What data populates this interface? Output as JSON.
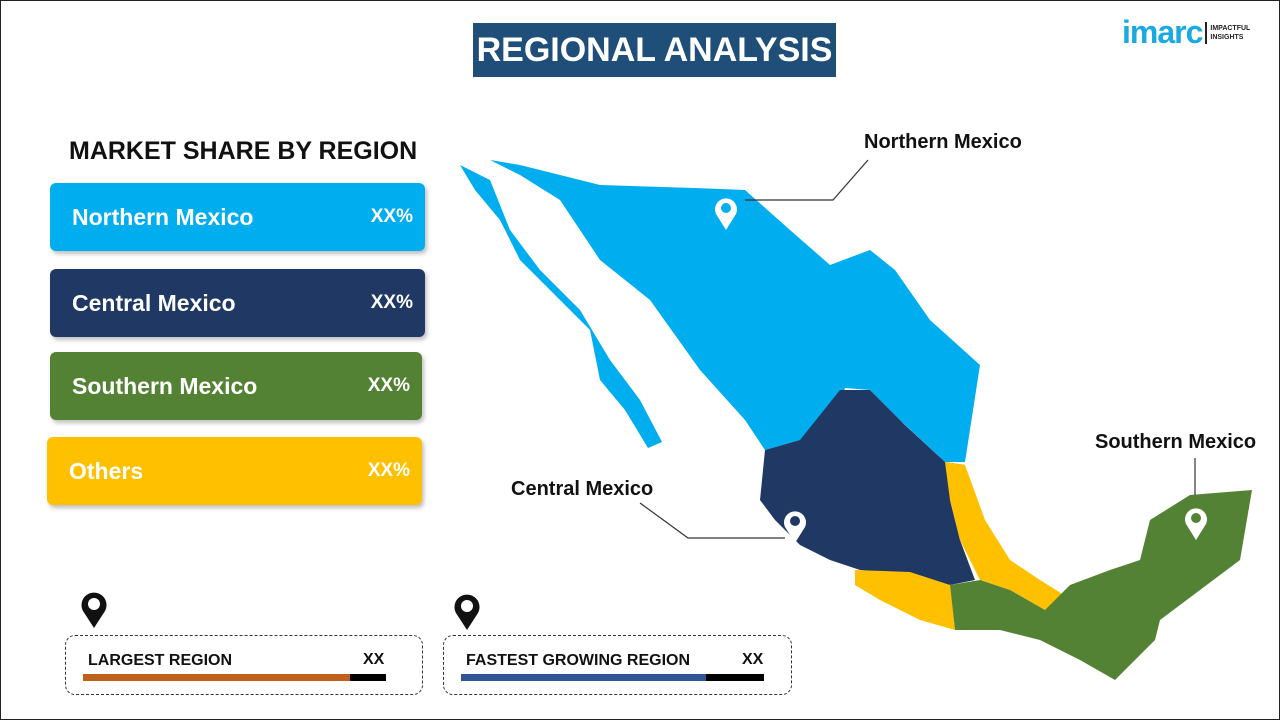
{
  "title": "REGIONAL ANALYSIS",
  "logo": {
    "wordmark": "imarc",
    "tagline_1": "IMPACTFUL",
    "tagline_2": "INSIGHTS"
  },
  "subtitle": "MARKET SHARE BY REGION",
  "regions": [
    {
      "name": "Northern Mexico",
      "value": "XX%",
      "color": "#00aeef"
    },
    {
      "name": "Central Mexico",
      "value": "XX%",
      "color": "#1f3864"
    },
    {
      "name": "Southern Mexico",
      "value": "XX%",
      "color": "#548235"
    },
    {
      "name": "Others",
      "value": "XX%",
      "color": "#ffc000"
    }
  ],
  "map_labels": {
    "north": "Northern Mexico",
    "central": "Central Mexico",
    "south": "Southern Mexico"
  },
  "cards": [
    {
      "label": "LARGEST REGION",
      "value": "XX",
      "bar_color": "#c0601f",
      "fill_fraction": 0.88
    },
    {
      "label": "FASTEST GROWING REGION",
      "value": "XX",
      "bar_color": "#2f5597",
      "fill_fraction": 0.81
    }
  ]
}
